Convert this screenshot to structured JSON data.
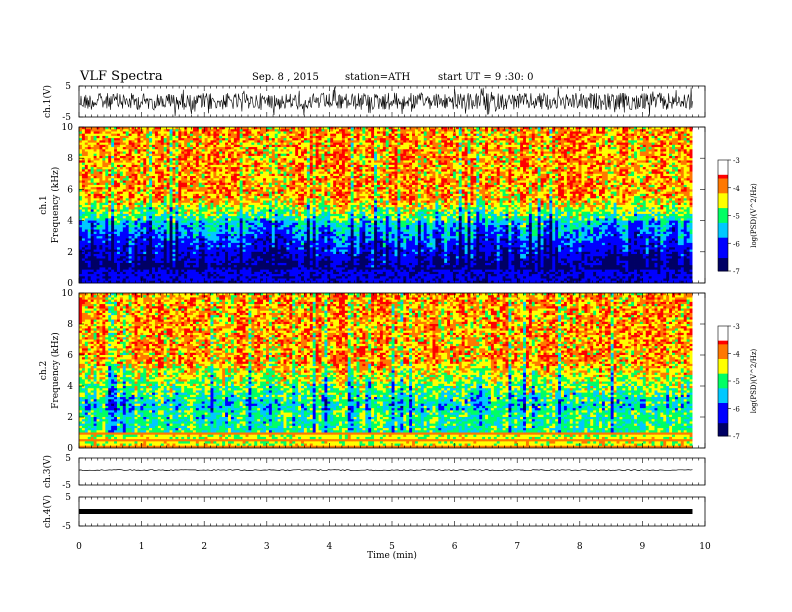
{
  "header": {
    "title": "VLF Spectra",
    "date": "Sep. 8 , 2015",
    "station": "station=ATH",
    "start": "start UT = 9 :30: 0"
  },
  "chart_data": {
    "type": "heatmap",
    "x_axis": {
      "label": "Time (min)",
      "range": [
        0,
        10
      ],
      "ticks": [
        "0",
        "1",
        "2",
        "3",
        "4",
        "5",
        "6",
        "7",
        "8",
        "9",
        "10"
      ]
    },
    "panels": [
      {
        "name": "ch1-waveform",
        "type": "line",
        "ylabel": "ch.1(V)",
        "yrange": [
          -5,
          5
        ],
        "yticks": [
          "5",
          "-5"
        ]
      },
      {
        "name": "ch1-spectrogram",
        "type": "heatmap",
        "ylabel_top": "ch.1",
        "ylabel": "Frequency (kHz)",
        "yrange": [
          0,
          10
        ],
        "yticks": [
          "0",
          "2",
          "4",
          "6",
          "8",
          "10"
        ],
        "colorbar": {
          "label": "log(PSD)(V^2/Hz)",
          "range": [
            -7,
            -3
          ],
          "ticks": [
            "-3",
            "-4",
            "-5",
            "-6",
            "-7"
          ]
        }
      },
      {
        "name": "ch2-spectrogram",
        "type": "heatmap",
        "ylabel_top": "ch.2",
        "ylabel": "Frequency (kHz)",
        "yrange": [
          0,
          10
        ],
        "yticks": [
          "0",
          "2",
          "4",
          "6",
          "8",
          "10"
        ],
        "colorbar": {
          "label": "log(PSD)(V^2/Hz)",
          "range": [
            -7,
            -3
          ],
          "ticks": [
            "-3",
            "-4",
            "-5",
            "-6",
            "-7"
          ]
        }
      },
      {
        "name": "ch3-waveform",
        "type": "line",
        "ylabel": "ch.3(V)",
        "yrange": [
          -5,
          5
        ],
        "yticks": [
          "5",
          "-5"
        ]
      },
      {
        "name": "ch4-waveform",
        "type": "line",
        "ylabel": "ch.4(V)",
        "yrange": [
          -5,
          5
        ],
        "yticks": [
          "5",
          "-5"
        ]
      }
    ],
    "data_end_min": 9.8,
    "colormap": [
      "#000064",
      "#0000ff",
      "#00c8ff",
      "#00ff64",
      "#ffff00",
      "#ff7800",
      "#ff0000",
      "#ffffff"
    ]
  }
}
